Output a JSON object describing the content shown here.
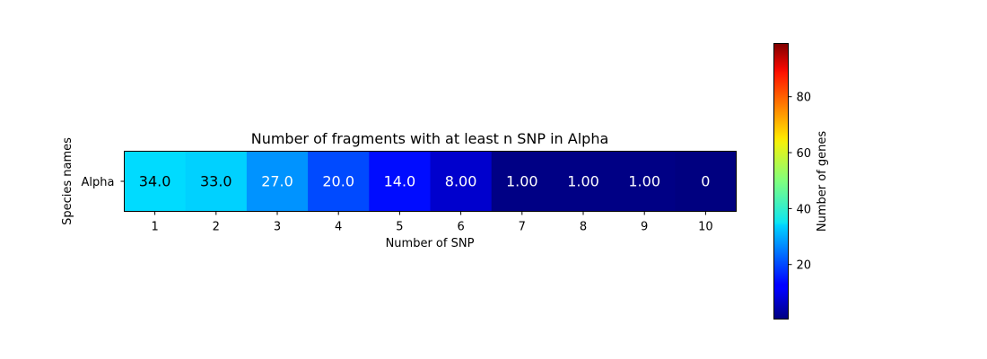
{
  "chart_data": {
    "type": "heatmap",
    "title": "Number of fragments with at least n SNP in Alpha",
    "xlabel": "Number of SNP",
    "ylabel": "Species names",
    "x_categories": [
      "1",
      "2",
      "3",
      "4",
      "5",
      "6",
      "7",
      "8",
      "9",
      "10"
    ],
    "y_categories": [
      "Alpha"
    ],
    "values": [
      [
        34,
        33,
        27,
        20,
        14,
        8,
        1,
        1,
        1,
        0
      ]
    ],
    "cell_labels": [
      [
        "34.0",
        "33.0",
        "27.0",
        "20.0",
        "14.0",
        "8.00",
        "1.00",
        "1.00",
        "1.00",
        "0"
      ]
    ],
    "colormap": "jet",
    "color_range": [
      0.5,
      99
    ],
    "colorbar": {
      "label": "Number of genes",
      "ticks": [
        20,
        40,
        60,
        80
      ]
    }
  }
}
